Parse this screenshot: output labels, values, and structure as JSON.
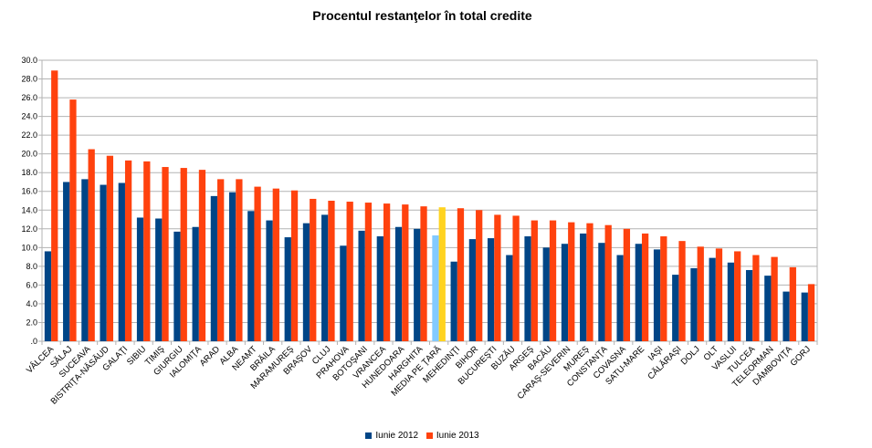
{
  "chart_data": {
    "type": "bar",
    "title": "Procentul restanţelor în total credite",
    "xlabel": "",
    "ylabel": "",
    "ylim": [
      0,
      30
    ],
    "yticks": [
      ".0",
      "2.0",
      "4.0",
      "6.0",
      "8.0",
      "10.0",
      "12.0",
      "14.0",
      "16.0",
      "18.0",
      "20.0",
      "22.0",
      "24.0",
      "26.0",
      "28.0",
      "30.0"
    ],
    "grid": true,
    "legend_position": "bottom",
    "categories": [
      "VÂLCEA",
      "SĂLAJ",
      "SUCEAVA",
      "BISTRIŢA-NĂSĂUD",
      "GALAŢI",
      "SIBIU",
      "TIMIŞ",
      "GIURGIU",
      "IALOMIŢA",
      "ARAD",
      "ALBA",
      "NEAMT",
      "BRĂILA",
      "MARAMUREŞ",
      "BRAŞOV",
      "CLUJ",
      "PRAHOVA",
      "BOTOŞANI",
      "VRANCEA",
      "HUNEDOARA",
      "HARGHITA",
      "MEDIA PE ŢARĂ",
      "MEHEDINŢI",
      "BIHOR",
      "BUCUREŞTI",
      "BUZĂU",
      "ARGEŞ",
      "BACĂU",
      "CARAŞ-SEVERIN",
      "MUREŞ",
      "CONSTANŢA",
      "COVASNA",
      "SATU-MARE",
      "IAŞI",
      "CĂLĂRAŞI",
      "DOLJ",
      "OLT",
      "VASLUI",
      "TULCEA",
      "TELEORMAN",
      "DÂMBOVIŢA",
      "GORJ"
    ],
    "highlight_category": "MEDIA PE ŢARĂ",
    "series": [
      {
        "name": "Iunie 2012",
        "color": "#004586",
        "highlight_color": "#83caff",
        "values": [
          9.6,
          17.0,
          17.3,
          16.7,
          16.9,
          13.2,
          13.1,
          11.7,
          12.2,
          15.5,
          15.9,
          13.9,
          12.9,
          11.1,
          12.6,
          13.5,
          10.2,
          11.8,
          11.2,
          12.2,
          12.0,
          11.3,
          8.5,
          10.9,
          11.0,
          9.2,
          11.2,
          10.0,
          10.4,
          11.5,
          10.5,
          9.2,
          10.4,
          9.8,
          7.1,
          7.8,
          8.9,
          8.4,
          7.6,
          7.0,
          5.3,
          5.2
        ]
      },
      {
        "name": "Iunie 2013",
        "color": "#ff420e",
        "highlight_color": "#ffd320",
        "values": [
          28.9,
          25.8,
          20.5,
          19.8,
          19.3,
          19.2,
          18.6,
          18.5,
          18.3,
          17.3,
          17.3,
          16.5,
          16.3,
          16.1,
          15.2,
          15.0,
          14.9,
          14.8,
          14.7,
          14.6,
          14.4,
          14.3,
          14.2,
          14.0,
          13.5,
          13.4,
          12.9,
          12.9,
          12.7,
          12.6,
          12.4,
          12.0,
          11.5,
          11.2,
          10.7,
          10.1,
          9.9,
          9.6,
          9.2,
          9.0,
          7.9,
          6.1
        ]
      }
    ]
  },
  "legend": [
    {
      "label": "Iunie 2012",
      "color": "#004586"
    },
    {
      "label": "Iunie 2013",
      "color": "#ff420e"
    }
  ]
}
